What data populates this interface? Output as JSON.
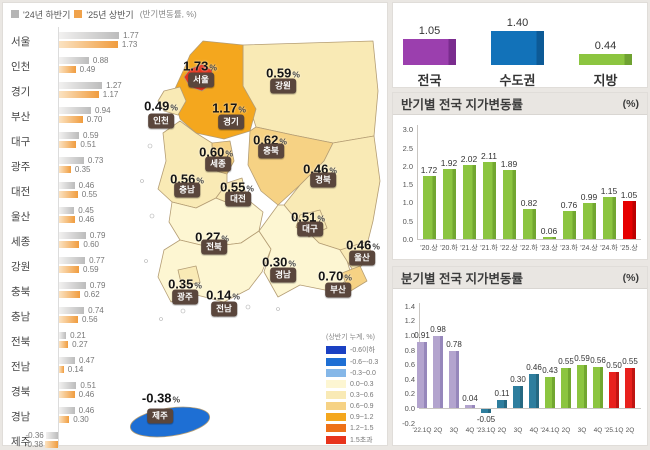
{
  "colors": {
    "page_bg": "#eae7e3",
    "panel_border": "#e0ddd9",
    "titlebar_bg": "#e9e6e2",
    "prev_bar": "#bcbcbc",
    "prev_bar_light": "#f2f1f0",
    "prev_swatch": "#b5b5b5",
    "curr_bar": "#f09c3e",
    "curr_bar_light": "#fbe3c2",
    "curr_swatch": "#f0a24b",
    "map_label_box": "#5a463c",
    "map_border": "#b49d74",
    "axis_line": "#c9c6c2"
  },
  "chart_data": [
    {
      "id": "regional-halfyear",
      "type": "bar",
      "orientation": "horizontal",
      "legend_note": "(반기변동률, %)",
      "categories": [
        "서울",
        "인천",
        "경기",
        "부산",
        "대구",
        "광주",
        "대전",
        "울산",
        "세종",
        "강원",
        "충북",
        "충남",
        "전북",
        "전남",
        "경북",
        "경남",
        "제주"
      ],
      "series": [
        {
          "name": "'24년 하반기",
          "values": [
            1.77,
            0.88,
            1.27,
            0.94,
            0.59,
            0.73,
            0.46,
            0.45,
            0.79,
            0.77,
            0.79,
            0.74,
            0.21,
            0.47,
            0.51,
            0.46,
            -0.36
          ]
        },
        {
          "name": "'25년 상반기",
          "values": [
            1.73,
            0.49,
            1.17,
            0.7,
            0.51,
            0.35,
            0.55,
            0.46,
            0.6,
            0.59,
            0.62,
            0.56,
            0.27,
            0.14,
            0.46,
            0.3,
            -0.38
          ]
        }
      ]
    },
    {
      "id": "korea-map",
      "type": "choropleth",
      "unit": "%",
      "legend_title": "(상반기 누계, %)",
      "legend": [
        {
          "label": "-0.6이하",
          "color": "#1b41c3"
        },
        {
          "label": "-0.6~-0.3",
          "color": "#1e6fd4"
        },
        {
          "label": "-0.3~0.0",
          "color": "#85b7e8"
        },
        {
          "label": "0.0~0.3",
          "color": "#fdf6d2"
        },
        {
          "label": "0.3~0.6",
          "color": "#f9eab5"
        },
        {
          "label": "0.6~0.9",
          "color": "#f6d284"
        },
        {
          "label": "0.9~1.2",
          "color": "#f4a71e"
        },
        {
          "label": "1.2~1.5",
          "color": "#ee7118"
        },
        {
          "label": "1.5초과",
          "color": "#e8341c"
        }
      ],
      "regions": [
        {
          "name": "서울",
          "value": 1.73,
          "band": "1.5초과"
        },
        {
          "name": "인천",
          "value": 0.49,
          "band": "0.3~0.6"
        },
        {
          "name": "경기",
          "value": 1.17,
          "band": "0.9~1.2"
        },
        {
          "name": "강원",
          "value": 0.59,
          "band": "0.3~0.6"
        },
        {
          "name": "충북",
          "value": 0.62,
          "band": "0.6~0.9"
        },
        {
          "name": "세종",
          "value": 0.6,
          "band": "0.6~0.9"
        },
        {
          "name": "충남",
          "value": 0.56,
          "band": "0.3~0.6"
        },
        {
          "name": "대전",
          "value": 0.55,
          "band": "0.3~0.6"
        },
        {
          "name": "경북",
          "value": 0.46,
          "band": "0.3~0.6"
        },
        {
          "name": "대구",
          "value": 0.51,
          "band": "0.3~0.6"
        },
        {
          "name": "전북",
          "value": 0.27,
          "band": "0.0~0.3"
        },
        {
          "name": "울산",
          "value": 0.46,
          "band": "0.3~0.6"
        },
        {
          "name": "경남",
          "value": 0.3,
          "band": "0.0~0.3"
        },
        {
          "name": "부산",
          "value": 0.7,
          "band": "0.6~0.9"
        },
        {
          "name": "광주",
          "value": 0.35,
          "band": "0.3~0.6"
        },
        {
          "name": "전남",
          "value": 0.14,
          "band": "0.0~0.3"
        },
        {
          "name": "제주",
          "value": -0.38,
          "band": "-0.6~-0.3"
        }
      ]
    },
    {
      "id": "summary",
      "type": "bar",
      "categories": [
        "전국",
        "수도권",
        "지방"
      ],
      "values": [
        1.05,
        1.4,
        0.44
      ],
      "colors": [
        "#9b3fae",
        "#1272b9",
        "#8cc540"
      ],
      "edges": [
        "#7a2c8e",
        "#0d5a96",
        "#6fa231"
      ]
    },
    {
      "id": "halfyearly-national",
      "type": "bar",
      "title": "반기별 전국 지가변동률",
      "unit": "(%)",
      "categories": [
        "'20.상",
        "'20.하",
        "'21.상",
        "'21.하",
        "'22.상",
        "'22.하",
        "'23.상",
        "'23.하",
        "'24.상",
        "'24.하",
        "'25.상"
      ],
      "values": [
        1.72,
        1.92,
        2.02,
        2.11,
        1.89,
        0.82,
        0.06,
        0.76,
        0.99,
        1.15,
        1.05
      ],
      "bar_color": "#8cc540",
      "bar_edge": "#72a730",
      "last_color": "#e60000",
      "last_edge": "#bb0000",
      "ylim": [
        0,
        3
      ],
      "yticks": [
        3.0,
        2.5,
        2.0,
        1.5,
        1.0,
        0.5,
        0.0
      ]
    },
    {
      "id": "quarterly-national",
      "type": "bar",
      "title": "분기별 전국 지가변동률",
      "unit": "(%)",
      "categories": [
        "'22.1Q",
        "2Q",
        "3Q",
        "4Q",
        "'23.1Q",
        "2Q",
        "3Q",
        "4Q",
        "'24.1Q",
        "2Q",
        "3Q",
        "4Q",
        "'25.1Q",
        "2Q"
      ],
      "values": [
        0.91,
        0.98,
        0.78,
        0.04,
        -0.05,
        0.11,
        0.3,
        0.46,
        0.43,
        0.55,
        0.59,
        0.56,
        0.5,
        0.55
      ],
      "bar_colors": [
        "#b3a4ce",
        "#b3a4ce",
        "#b3a4ce",
        "#b3a4ce",
        "#2e7e9e",
        "#2e7e9e",
        "#2e7e9e",
        "#2e7e9e",
        "#8cc540",
        "#8cc540",
        "#8cc540",
        "#8cc540",
        "#e8211d",
        "#e8211d"
      ],
      "bar_edges": [
        "#9687bb",
        "#9687bb",
        "#9687bb",
        "#9687bb",
        "#256881",
        "#256881",
        "#256881",
        "#256881",
        "#72a730",
        "#72a730",
        "#72a730",
        "#72a730",
        "#c01512",
        "#c01512"
      ],
      "ylim": [
        -0.2,
        1.4
      ],
      "yticks": [
        1.4,
        1.2,
        1.0,
        0.8,
        0.6,
        0.4,
        0.2,
        0.0,
        -0.2
      ]
    }
  ]
}
